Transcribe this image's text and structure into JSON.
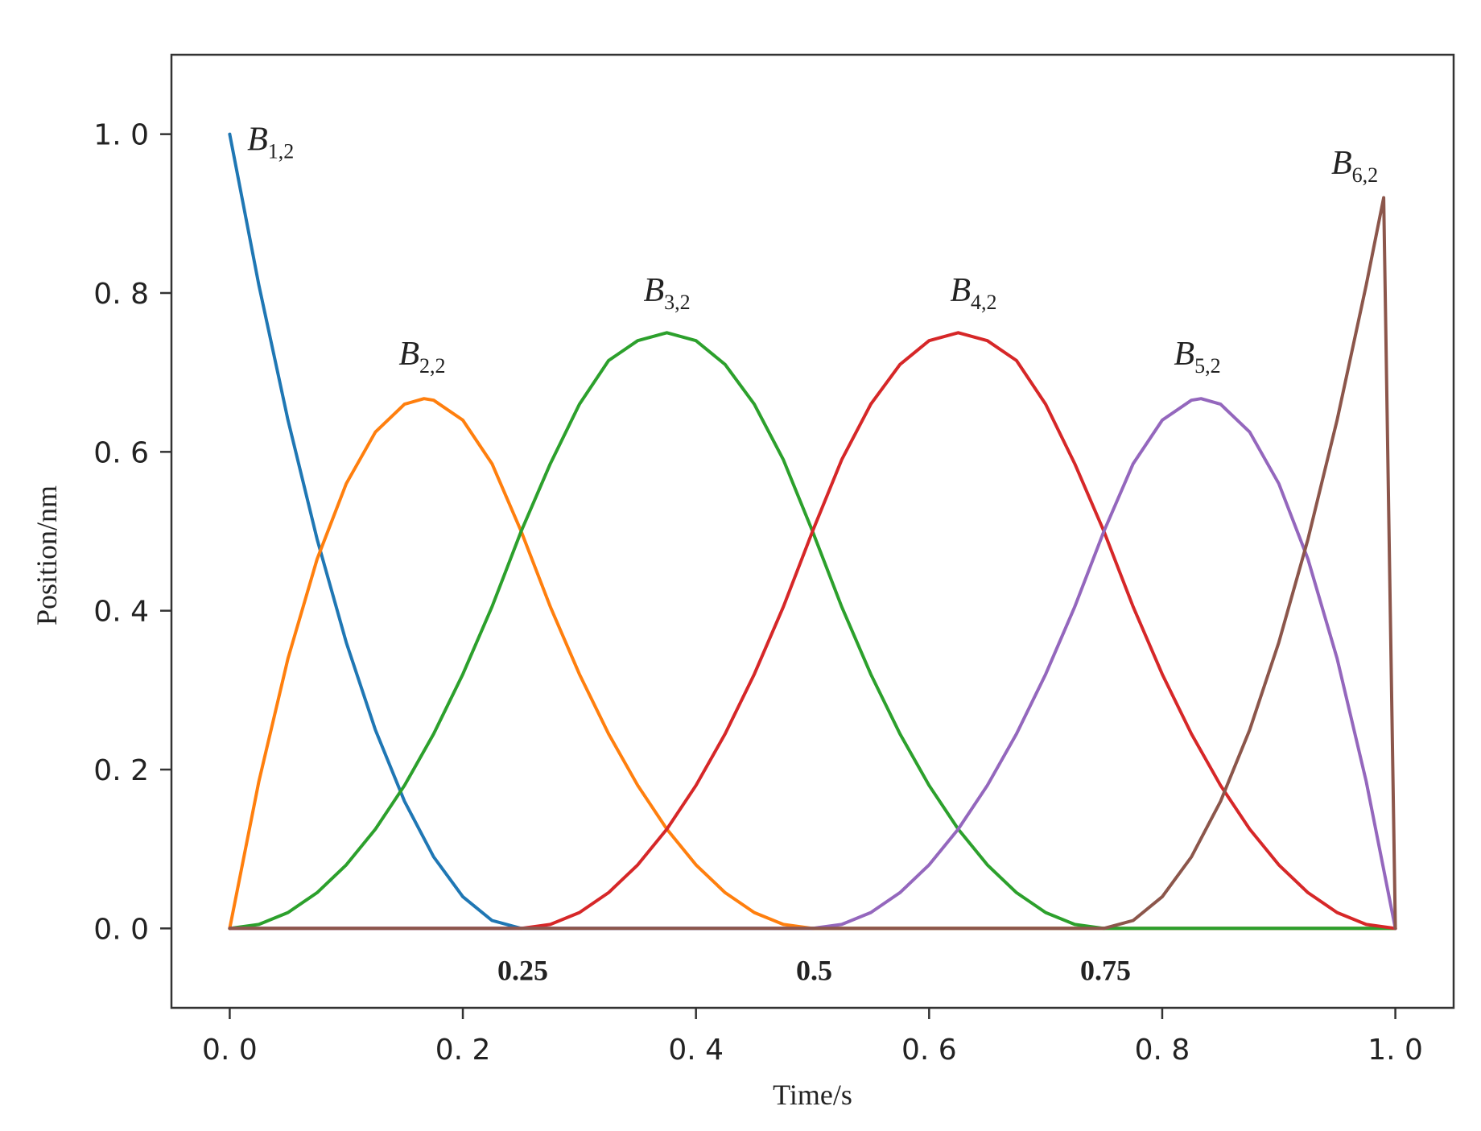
{
  "chart_data": {
    "type": "line",
    "title": "",
    "xlabel": "Time/s",
    "ylabel": "Position/nm",
    "xlim": [
      -0.05,
      1.05
    ],
    "ylim": [
      -0.1,
      1.1
    ],
    "xticks": [
      0.0,
      0.2,
      0.4,
      0.6,
      0.8,
      1.0
    ],
    "xtick_labels": [
      "0. 0",
      "0. 2",
      "0. 4",
      "0. 6",
      "0. 8",
      "1. 0"
    ],
    "yticks": [
      0.0,
      0.2,
      0.4,
      0.6,
      0.8,
      1.0
    ],
    "ytick_labels": [
      "0. 0",
      "0. 2",
      "0. 4",
      "0. 6",
      "0. 8",
      "1. 0"
    ],
    "knot_labels": [
      {
        "x": 0.25,
        "text": "0.25"
      },
      {
        "x": 0.5,
        "text": "0.5"
      },
      {
        "x": 0.75,
        "text": "0.75"
      }
    ],
    "grid": false,
    "legend": "none",
    "series": [
      {
        "name": "B1,2",
        "base": "B",
        "sub": "1,2",
        "color": "#1f77b4",
        "label_at": [
          0.015,
          0.98
        ],
        "x": [
          0,
          0.025,
          0.05,
          0.075,
          0.1,
          0.125,
          0.15,
          0.175,
          0.2,
          0.225,
          0.25,
          0.5,
          0.75,
          1.0
        ],
        "y": [
          1.0,
          0.81,
          0.64,
          0.49,
          0.36,
          0.25,
          0.16,
          0.09,
          0.04,
          0.01,
          0,
          0,
          0,
          0
        ]
      },
      {
        "name": "B2,2",
        "base": "B",
        "sub": "2,2",
        "color": "#ff7f0e",
        "label_at": [
          0.145,
          0.71
        ],
        "x": [
          0,
          0.025,
          0.05,
          0.075,
          0.1,
          0.125,
          0.15,
          0.1667,
          0.175,
          0.2,
          0.225,
          0.25,
          0.275,
          0.3,
          0.325,
          0.35,
          0.375,
          0.4,
          0.425,
          0.45,
          0.475,
          0.5,
          0.75,
          1.0
        ],
        "y": [
          0,
          0.185,
          0.34,
          0.465,
          0.56,
          0.625,
          0.66,
          0.667,
          0.665,
          0.64,
          0.585,
          0.5,
          0.405,
          0.32,
          0.245,
          0.18,
          0.125,
          0.08,
          0.045,
          0.02,
          0.005,
          0,
          0,
          0
        ]
      },
      {
        "name": "B3,2",
        "base": "B",
        "sub": "3,2",
        "color": "#2ca02c",
        "label_at": [
          0.355,
          0.79
        ],
        "x": [
          0,
          0.025,
          0.05,
          0.075,
          0.1,
          0.125,
          0.15,
          0.175,
          0.2,
          0.225,
          0.25,
          0.275,
          0.3,
          0.325,
          0.35,
          0.375,
          0.4,
          0.425,
          0.45,
          0.475,
          0.5,
          0.525,
          0.55,
          0.575,
          0.6,
          0.625,
          0.65,
          0.675,
          0.7,
          0.725,
          0.75,
          0.8,
          0.9,
          1.0
        ],
        "y": [
          0,
          0.005,
          0.02,
          0.045,
          0.08,
          0.125,
          0.18,
          0.245,
          0.32,
          0.405,
          0.5,
          0.585,
          0.66,
          0.715,
          0.74,
          0.75,
          0.74,
          0.71,
          0.66,
          0.59,
          0.5,
          0.405,
          0.32,
          0.245,
          0.18,
          0.125,
          0.08,
          0.045,
          0.02,
          0.005,
          0,
          0,
          0,
          0
        ]
      },
      {
        "name": "B4,2",
        "base": "B",
        "sub": "4,2",
        "color": "#d62728",
        "label_at": [
          0.618,
          0.79
        ],
        "x": [
          0,
          0.1,
          0.25,
          0.275,
          0.3,
          0.325,
          0.35,
          0.375,
          0.4,
          0.425,
          0.45,
          0.475,
          0.5,
          0.525,
          0.55,
          0.575,
          0.6,
          0.625,
          0.65,
          0.675,
          0.7,
          0.725,
          0.75,
          0.775,
          0.8,
          0.825,
          0.85,
          0.875,
          0.9,
          0.925,
          0.95,
          0.975,
          1.0
        ],
        "y": [
          0,
          0,
          0,
          0.005,
          0.02,
          0.045,
          0.08,
          0.125,
          0.18,
          0.245,
          0.32,
          0.405,
          0.5,
          0.59,
          0.66,
          0.71,
          0.74,
          0.75,
          0.74,
          0.715,
          0.66,
          0.585,
          0.5,
          0.405,
          0.32,
          0.245,
          0.18,
          0.125,
          0.08,
          0.045,
          0.02,
          0.005,
          0
        ]
      },
      {
        "name": "B5,2",
        "base": "B",
        "sub": "5,2",
        "color": "#9467bd",
        "label_at": [
          0.81,
          0.71
        ],
        "x": [
          0,
          0.25,
          0.5,
          0.525,
          0.55,
          0.575,
          0.6,
          0.625,
          0.65,
          0.675,
          0.7,
          0.725,
          0.75,
          0.775,
          0.8,
          0.825,
          0.8333,
          0.85,
          0.875,
          0.9,
          0.925,
          0.95,
          0.975,
          1.0
        ],
        "y": [
          0,
          0,
          0,
          0.005,
          0.02,
          0.045,
          0.08,
          0.125,
          0.18,
          0.245,
          0.32,
          0.405,
          0.5,
          0.585,
          0.64,
          0.665,
          0.667,
          0.66,
          0.625,
          0.56,
          0.465,
          0.34,
          0.185,
          0
        ]
      },
      {
        "name": "B6,2",
        "base": "B",
        "sub": "6,2",
        "color": "#8c564b",
        "label_at": [
          0.945,
          0.95
        ],
        "x": [
          0,
          0.25,
          0.5,
          0.75,
          0.775,
          0.8,
          0.825,
          0.85,
          0.875,
          0.9,
          0.925,
          0.95,
          0.975,
          0.99,
          1.0
        ],
        "y": [
          0,
          0,
          0,
          0,
          0.01,
          0.04,
          0.09,
          0.16,
          0.25,
          0.36,
          0.49,
          0.64,
          0.81,
          0.92,
          0
        ]
      }
    ]
  }
}
